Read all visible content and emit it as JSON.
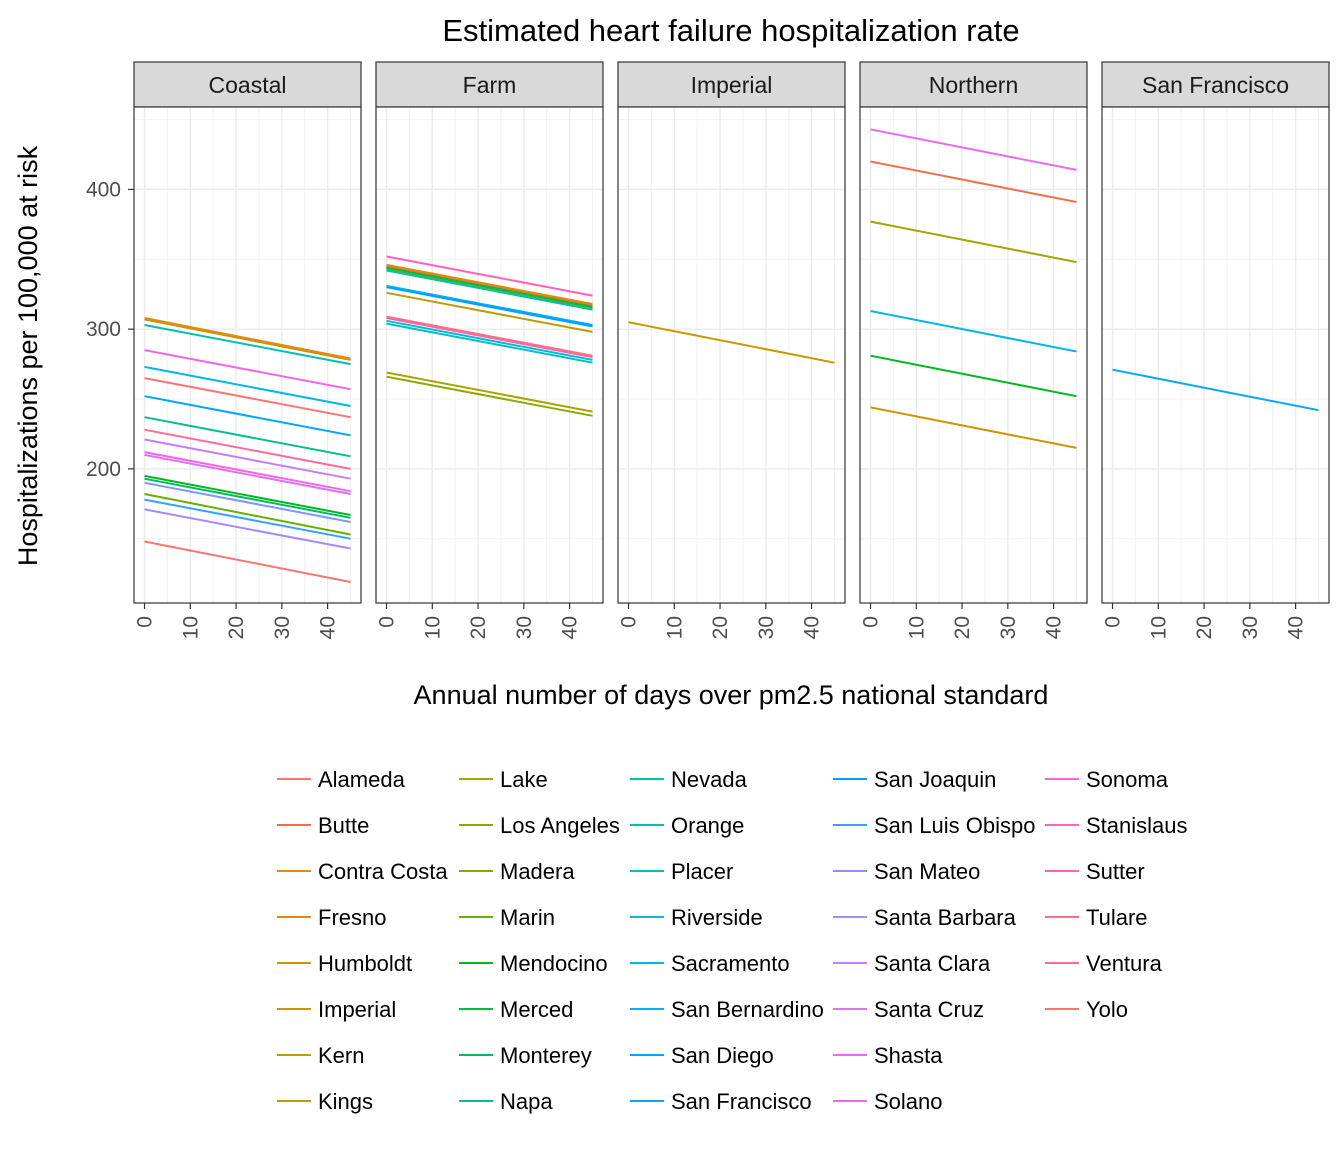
{
  "chart_data": {
    "type": "line",
    "title": "Estimated heart failure hospitalization rate",
    "xlabel": "Annual number of days over pm2.5 national standard",
    "ylabel": "Hospitalizations per 100,000 at risk",
    "x_ticks": [
      0,
      10,
      20,
      30,
      40
    ],
    "y_ticks": [
      200,
      300,
      400
    ],
    "xlim": [
      -2.3,
      47.3
    ],
    "ylim": [
      104,
      459
    ],
    "grid": true,
    "legend_position": "bottom",
    "panels": [
      {
        "name": "Coastal",
        "series": [
          {
            "name": "Alameda",
            "color": "#F8766D",
            "x": [
              0,
              45
            ],
            "y": [
              265,
              237
            ]
          },
          {
            "name": "Contra Costa",
            "color": "#E7861B",
            "x": [
              0,
              45
            ],
            "y": [
              308,
              279
            ]
          },
          {
            "name": "Humboldt",
            "color": "#CF9400",
            "x": [
              0,
              45
            ],
            "y": [
              307,
              278
            ]
          },
          {
            "name": "Marin",
            "color": "#64B200",
            "x": [
              0,
              45
            ],
            "y": [
              182,
              153
            ]
          },
          {
            "name": "Mendocino",
            "color": "#00B81F",
            "x": [
              0,
              45
            ],
            "y": [
              195,
              167
            ]
          },
          {
            "name": "Monterey",
            "color": "#00BD5C",
            "x": [
              0,
              45
            ],
            "y": [
              193,
              165
            ]
          },
          {
            "name": "Napa",
            "color": "#00C08D",
            "x": [
              0,
              45
            ],
            "y": [
              237,
              209
            ]
          },
          {
            "name": "Orange",
            "color": "#00BFB7",
            "x": [
              0,
              45
            ],
            "y": [
              303,
              275
            ]
          },
          {
            "name": "Sacramento",
            "color": "#00B8E5",
            "x": [
              0,
              45
            ],
            "y": [
              273,
              245
            ]
          },
          {
            "name": "San Diego",
            "color": "#00A5FF",
            "x": [
              0,
              45
            ],
            "y": [
              252,
              224
            ]
          },
          {
            "name": "San Luis Obispo",
            "color": "#35A2FF",
            "x": [
              0,
              45
            ],
            "y": [
              178,
              150
            ]
          },
          {
            "name": "San Mateo",
            "color": "#7F96FF",
            "x": [
              0,
              45
            ],
            "y": [
              190,
              162
            ]
          },
          {
            "name": "Santa Barbara",
            "color": "#A58AFF",
            "x": [
              0,
              45
            ],
            "y": [
              171,
              143
            ]
          },
          {
            "name": "Santa Clara",
            "color": "#C77CFF",
            "x": [
              0,
              45
            ],
            "y": [
              221,
              193
            ]
          },
          {
            "name": "Santa Cruz",
            "color": "#DE71F9",
            "x": [
              0,
              45
            ],
            "y": [
              210,
              182
            ]
          },
          {
            "name": "Solano",
            "color": "#EF67EB",
            "x": [
              0,
              45
            ],
            "y": [
              285,
              257
            ]
          },
          {
            "name": "Sonoma",
            "color": "#F564E3",
            "x": [
              0,
              45
            ],
            "y": [
              212,
              184
            ]
          },
          {
            "name": "Ventura",
            "color": "#FF6A98",
            "x": [
              0,
              45
            ],
            "y": [
              228,
              200
            ]
          },
          {
            "name": "Yolo",
            "color": "#F8766D",
            "x": [
              0,
              45
            ],
            "y": [
              148,
              119
            ]
          }
        ]
      },
      {
        "name": "Farm",
        "series": [
          {
            "name": "Butte",
            "color": "#F26F4E",
            "x": [
              0,
              45
            ],
            "y": [
              345,
              317
            ]
          },
          {
            "name": "Fresno",
            "color": "#E18A00",
            "x": [
              0,
              45
            ],
            "y": [
              346,
              318
            ]
          },
          {
            "name": "Kern",
            "color": "#BE9C00",
            "x": [
              0,
              45
            ],
            "y": [
              326,
              298
            ]
          },
          {
            "name": "Kings",
            "color": "#AAA300",
            "x": [
              0,
              45
            ],
            "y": [
              269,
              241
            ]
          },
          {
            "name": "Los Angeles",
            "color": "#8CAB00",
            "x": [
              0,
              45
            ],
            "y": [
              266,
              238
            ]
          },
          {
            "name": "Madera",
            "color": "#7CAE00",
            "x": [
              0,
              45
            ],
            "y": [
              343,
              315
            ]
          },
          {
            "name": "Merced",
            "color": "#00BB45",
            "x": [
              0,
              45
            ],
            "y": [
              344,
              316
            ]
          },
          {
            "name": "Nevada",
            "color": "#00C1A9",
            "x": [
              0,
              45
            ],
            "y": [
              342,
              314
            ]
          },
          {
            "name": "Placer",
            "color": "#00BFC4",
            "x": [
              0,
              45
            ],
            "y": [
              304,
              276
            ]
          },
          {
            "name": "Riverside",
            "color": "#00BCD8",
            "x": [
              0,
              45
            ],
            "y": [
              306,
              278
            ]
          },
          {
            "name": "San Bernardino",
            "color": "#00B0F6",
            "x": [
              0,
              45
            ],
            "y": [
              331,
              303
            ]
          },
          {
            "name": "San Joaquin",
            "color": "#009EFF",
            "x": [
              0,
              45
            ],
            "y": [
              330,
              302
            ]
          },
          {
            "name": "Stanislaus",
            "color": "#FF62BC",
            "x": [
              0,
              45
            ],
            "y": [
              352,
              324
            ]
          },
          {
            "name": "Sutter",
            "color": "#FF64AB",
            "x": [
              0,
              45
            ],
            "y": [
              308,
              280
            ]
          },
          {
            "name": "Tulare",
            "color": "#FC6E84",
            "x": [
              0,
              45
            ],
            "y": [
              309,
              281
            ]
          }
        ]
      },
      {
        "name": "Imperial",
        "series": [
          {
            "name": "Imperial",
            "color": "#C99800",
            "x": [
              0,
              45
            ],
            "y": [
              305,
              276
            ]
          }
        ]
      },
      {
        "name": "Northern",
        "series": [
          {
            "name": "Butte",
            "color": "#F26F4E",
            "x": [
              0,
              45
            ],
            "y": [
              420,
              391
            ]
          },
          {
            "name": "Humboldt",
            "color": "#CF9400",
            "x": [
              0,
              45
            ],
            "y": [
              244,
              215
            ]
          },
          {
            "name": "Lake",
            "color": "#A3A500",
            "x": [
              0,
              45
            ],
            "y": [
              377,
              348
            ]
          },
          {
            "name": "Mendocino",
            "color": "#00B81F",
            "x": [
              0,
              45
            ],
            "y": [
              281,
              252
            ]
          },
          {
            "name": "Sacramento",
            "color": "#00B8E5",
            "x": [
              0,
              45
            ],
            "y": [
              313,
              284
            ]
          },
          {
            "name": "Shasta",
            "color": "#E76BF3",
            "x": [
              0,
              45
            ],
            "y": [
              443,
              414
            ]
          }
        ]
      },
      {
        "name": "San Francisco",
        "series": [
          {
            "name": "San Francisco",
            "color": "#00A9FF",
            "x": [
              0,
              45
            ],
            "y": [
              271,
              242
            ]
          }
        ]
      }
    ],
    "legend": {
      "columns": [
        [
          {
            "name": "Alameda",
            "color": "#F8766D"
          },
          {
            "name": "Butte",
            "color": "#F26F4E"
          },
          {
            "name": "Contra Costa",
            "color": "#E7861B"
          },
          {
            "name": "Fresno",
            "color": "#E18A00"
          },
          {
            "name": "Humboldt",
            "color": "#CF9400"
          },
          {
            "name": "Imperial",
            "color": "#C99800"
          },
          {
            "name": "Kern",
            "color": "#BE9C00"
          },
          {
            "name": "Kings",
            "color": "#AAA300"
          }
        ],
        [
          {
            "name": "Lake",
            "color": "#A3A500"
          },
          {
            "name": "Los Angeles",
            "color": "#8CAB00"
          },
          {
            "name": "Madera",
            "color": "#7CAE00"
          },
          {
            "name": "Marin",
            "color": "#64B200"
          },
          {
            "name": "Mendocino",
            "color": "#00B81F"
          },
          {
            "name": "Merced",
            "color": "#00BB45"
          },
          {
            "name": "Monterey",
            "color": "#00BD5C"
          },
          {
            "name": "Napa",
            "color": "#00C08D"
          }
        ],
        [
          {
            "name": "Nevada",
            "color": "#00C1A9"
          },
          {
            "name": "Orange",
            "color": "#00BFB7"
          },
          {
            "name": "Placer",
            "color": "#00BFC4"
          },
          {
            "name": "Riverside",
            "color": "#00BCD8"
          },
          {
            "name": "Sacramento",
            "color": "#00B8E5"
          },
          {
            "name": "San Bernardino",
            "color": "#00B0F6"
          },
          {
            "name": "San Diego",
            "color": "#00A5FF"
          },
          {
            "name": "San Francisco",
            "color": "#00A9FF"
          }
        ],
        [
          {
            "name": "San Joaquin",
            "color": "#009EFF"
          },
          {
            "name": "San Luis Obispo",
            "color": "#35A2FF"
          },
          {
            "name": "San Mateo",
            "color": "#7F96FF"
          },
          {
            "name": "Santa Barbara",
            "color": "#A58AFF"
          },
          {
            "name": "Santa Clara",
            "color": "#C77CFF"
          },
          {
            "name": "Santa Cruz",
            "color": "#DE71F9"
          },
          {
            "name": "Shasta",
            "color": "#E76BF3"
          },
          {
            "name": "Solano",
            "color": "#EF67EB"
          }
        ],
        [
          {
            "name": "Sonoma",
            "color": "#F564E3"
          },
          {
            "name": "Stanislaus",
            "color": "#FF62BC"
          },
          {
            "name": "Sutter",
            "color": "#FF64AB"
          },
          {
            "name": "Tulare",
            "color": "#FC6E84"
          },
          {
            "name": "Ventura",
            "color": "#FF6A98"
          },
          {
            "name": "Yolo",
            "color": "#F8766D"
          }
        ]
      ]
    }
  }
}
